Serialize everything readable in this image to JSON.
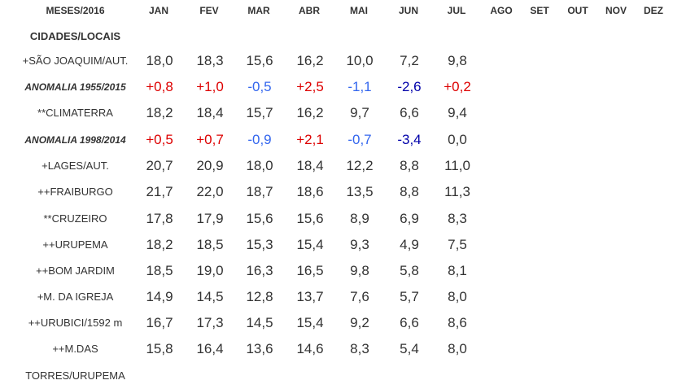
{
  "header": {
    "label": "MESES/2016",
    "months": [
      "JAN",
      "FEV",
      "MAR",
      "ABR",
      "MAI",
      "JUN",
      "JUL",
      "AGO",
      "SET",
      "OUT",
      "NOV",
      "DEZ"
    ]
  },
  "subheader": "CIDADES/LOCAIS",
  "rows": [
    {
      "label": "+SÃO JOAQUIM/AUT.",
      "italic": false,
      "values": [
        "18,0",
        "18,3",
        "15,6",
        "16,2",
        "10,0",
        "7,2",
        "9,8"
      ]
    },
    {
      "label": "ANOMALIA 1955/2015",
      "italic": true,
      "values": [
        "+0,8",
        "+1,0",
        "-0,5",
        "+2,5",
        "-1,1",
        "-2,6",
        "+0,2"
      ],
      "styles": [
        "pos",
        "pos",
        "neg1",
        "pos",
        "neg1",
        "neg2",
        "pos"
      ]
    },
    {
      "label": "**CLIMATERRA",
      "italic": false,
      "values": [
        "18,2",
        "18,4",
        "15,7",
        "16,2",
        "9,7",
        "6,6",
        "9,4"
      ]
    },
    {
      "label": "ANOMALIA 1998/2014",
      "italic": true,
      "values": [
        "+0,5",
        "+0,7",
        "-0,9",
        "+2,1",
        "-0,7",
        "-3,4",
        "0,0"
      ],
      "styles": [
        "pos",
        "pos",
        "neg1",
        "pos",
        "neg1",
        "neg2",
        "zero"
      ]
    },
    {
      "label": "+LAGES/AUT.",
      "italic": false,
      "values": [
        "20,7",
        "20,9",
        "18,0",
        "18,4",
        "12,2",
        "8,8",
        "11,0"
      ]
    },
    {
      "label": "++FRAIBURGO",
      "italic": false,
      "values": [
        "21,7",
        "22,0",
        "18,7",
        "18,6",
        "13,5",
        "8,8",
        "11,3"
      ]
    },
    {
      "label": "**CRUZEIRO",
      "italic": false,
      "values": [
        "17,8",
        "17,9",
        "15,6",
        "15,6",
        "8,9",
        "6,9",
        "8,3"
      ]
    },
    {
      "label": "++URUPEMA",
      "italic": false,
      "values": [
        "18,2",
        "18,5",
        "15,3",
        "15,4",
        "9,3",
        "4,9",
        "7,5"
      ]
    },
    {
      "label": "++BOM JARDIM",
      "italic": false,
      "values": [
        "18,5",
        "19,0",
        "16,3",
        "16,5",
        "9,8",
        "5,8",
        "8,1"
      ]
    },
    {
      "label": "+M. DA IGREJA",
      "italic": false,
      "values": [
        "14,9",
        "14,5",
        "12,8",
        "13,7",
        "7,6",
        "5,7",
        "8,0"
      ]
    },
    {
      "label": "++URUBICI/1592 m",
      "italic": false,
      "values": [
        "16,7",
        "17,3",
        "14,5",
        "15,4",
        "9,2",
        "6,6",
        "8,6"
      ]
    },
    {
      "label": "++M.DAS",
      "italic": false,
      "values": [
        "15,8",
        "16,4",
        "13,6",
        "14,6",
        "8,3",
        "5,4",
        "8,0"
      ]
    }
  ],
  "footer_label": "TORRES/URUPEMA"
}
